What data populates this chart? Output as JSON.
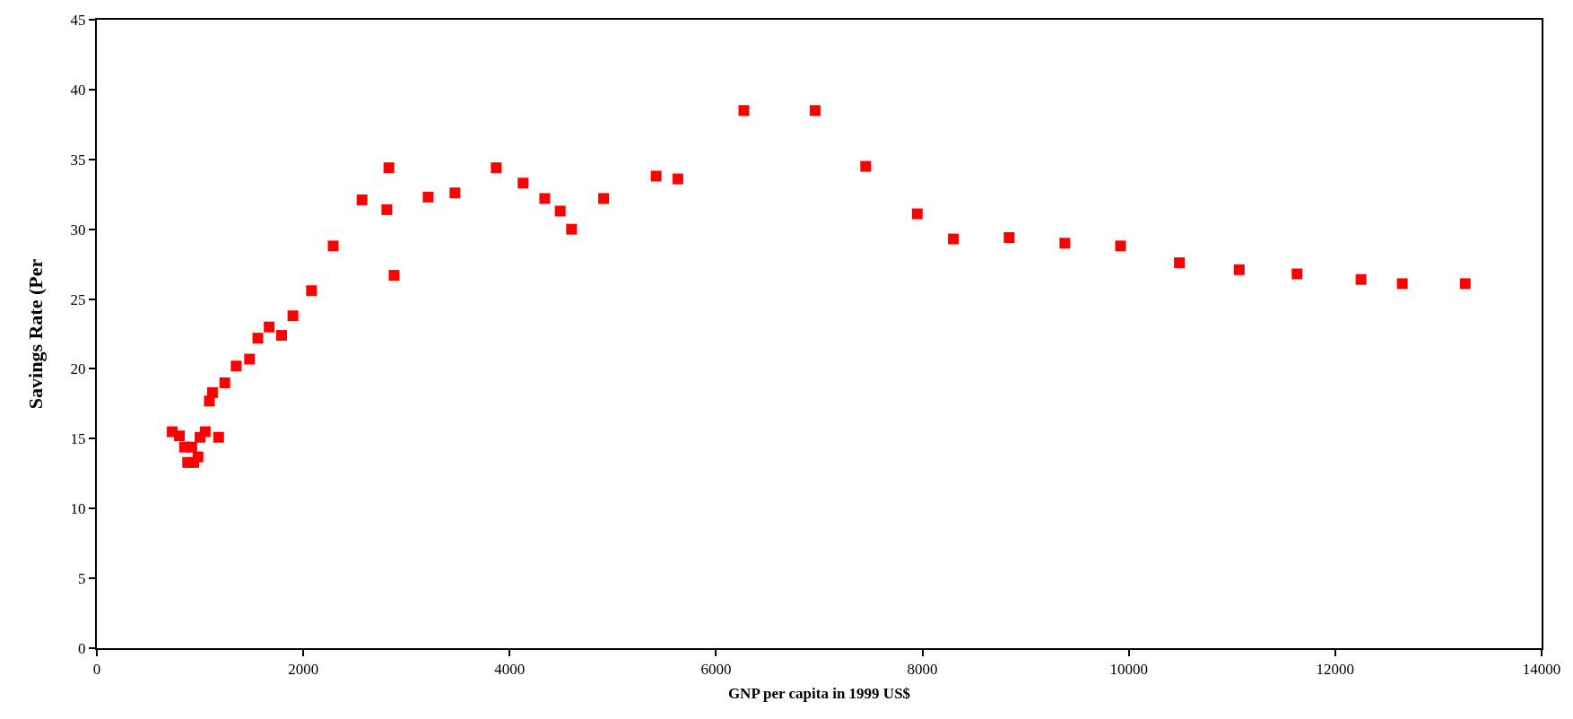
{
  "chart_data": {
    "type": "scatter",
    "xlabel": "GNP per capita in 1999 US$",
    "ylabel": "Savings Rate (Per",
    "x": [
      730,
      800,
      850,
      880,
      920,
      940,
      980,
      1000,
      1050,
      1090,
      1120,
      1180,
      1240,
      1350,
      1480,
      1560,
      1670,
      1790,
      1900,
      2080,
      2290,
      2570,
      2810,
      2830,
      2880,
      3210,
      3470,
      3870,
      4130,
      4340,
      4490,
      4600,
      4910,
      5420,
      5630,
      6270,
      6960,
      7450,
      7950,
      8300,
      8840,
      9380,
      9920,
      10490,
      11070,
      11630,
      12250,
      12650,
      13260
    ],
    "values": [
      15.5,
      15.2,
      14.4,
      13.3,
      14.4,
      13.3,
      13.7,
      15.1,
      15.5,
      17.7,
      18.3,
      15.1,
      19.0,
      20.2,
      20.7,
      22.2,
      23.0,
      22.4,
      23.8,
      25.6,
      28.8,
      32.1,
      31.4,
      34.4,
      26.7,
      32.3,
      32.6,
      34.4,
      33.3,
      32.2,
      31.3,
      30.0,
      32.2,
      33.8,
      33.6,
      38.5,
      38.5,
      34.5,
      31.1,
      29.3,
      29.4,
      29.0,
      28.8,
      27.6,
      27.1,
      26.8,
      26.4,
      26.1,
      26.1
    ],
    "color": "#ff0000",
    "marker": "square",
    "xlim": [
      0,
      14000
    ],
    "xticks": [
      0,
      2000,
      4000,
      6000,
      8000,
      10000,
      12000,
      14000
    ],
    "ylim": [
      0,
      45
    ],
    "yticks": [
      0,
      5,
      10,
      15,
      20,
      25,
      30,
      35,
      40,
      45
    ]
  }
}
